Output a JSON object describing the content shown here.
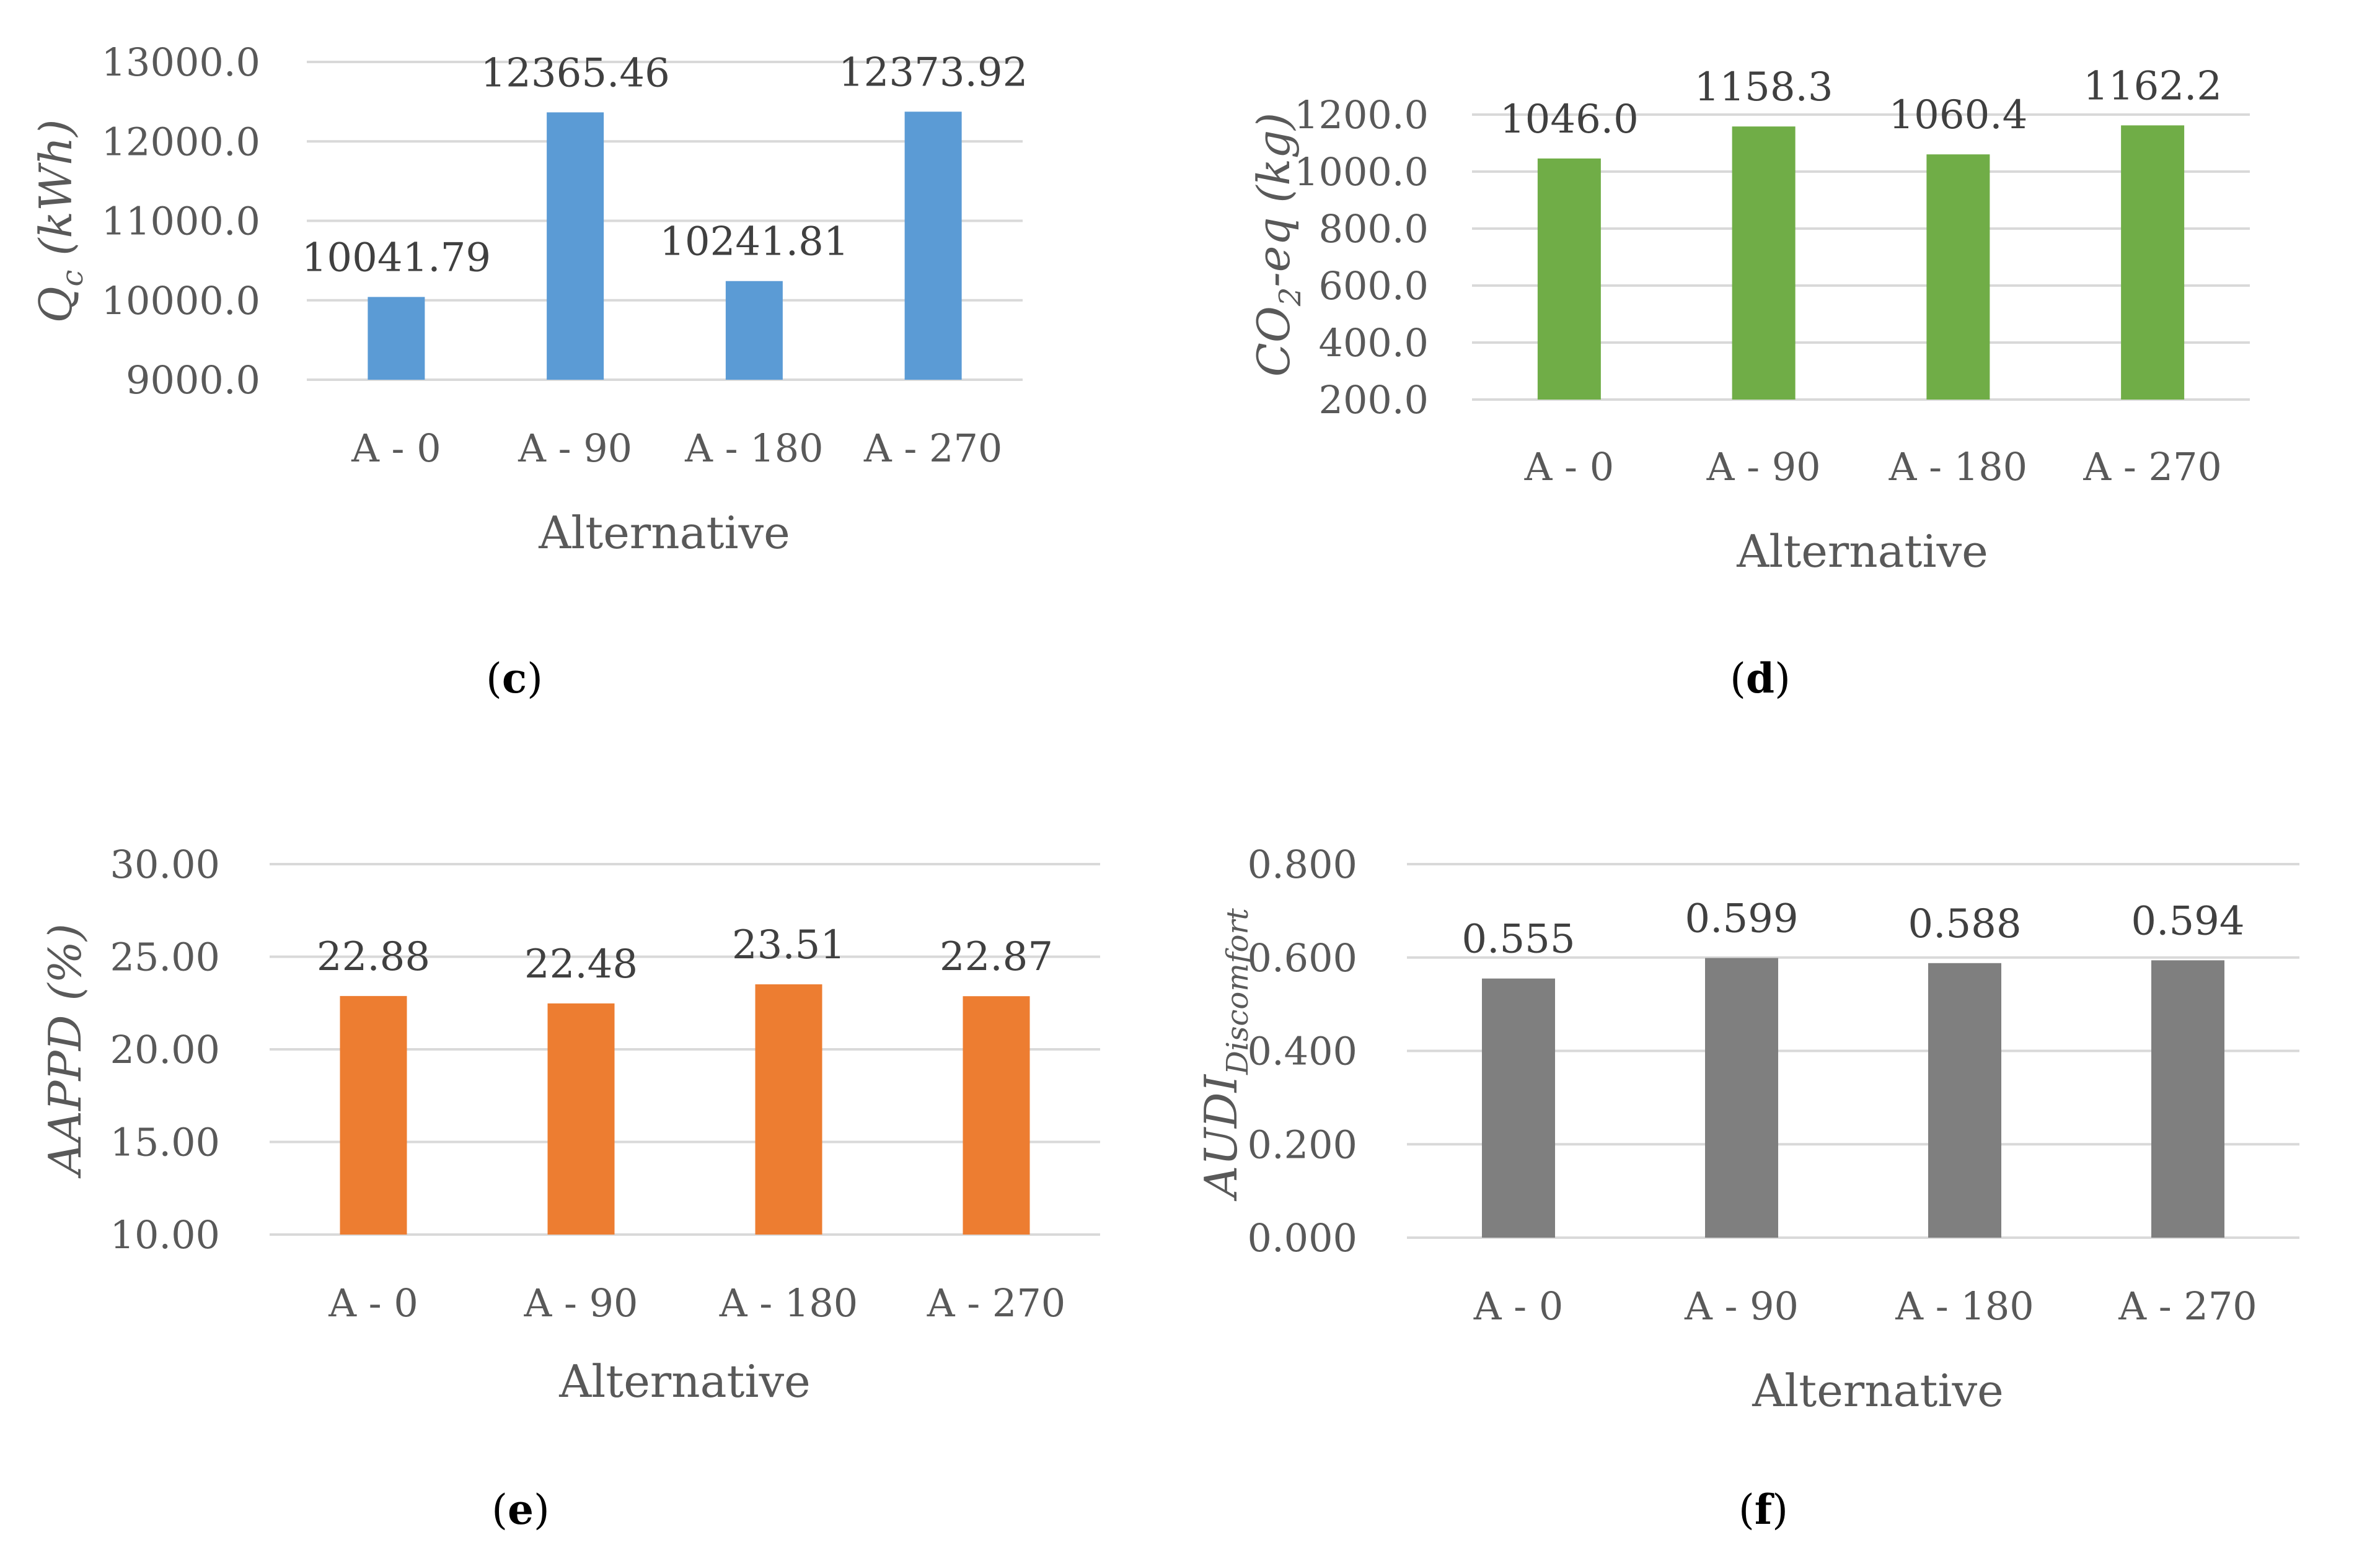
{
  "chart_data": [
    {
      "id": "c",
      "panel_label": "c",
      "type": "bar",
      "categories": [
        "A - 0",
        "A - 90",
        "A - 180",
        "A - 270"
      ],
      "values": [
        10041.79,
        12365.46,
        10241.81,
        12373.92
      ],
      "value_labels": [
        "10041.79",
        "12365.46",
        "10241.81",
        "12373.92"
      ],
      "ylabel": "Q",
      "ylabel_sub": "c",
      "ylabel_rest": " (kWh)",
      "xlabel": "Alternative",
      "ylim": [
        9000,
        13000
      ],
      "yticks": [
        "9000.0",
        "10000.0",
        "11000.0",
        "12000.0",
        "13000.0"
      ],
      "color": "#5b9bd5",
      "grid": true
    },
    {
      "id": "d",
      "panel_label": "d",
      "type": "bar",
      "categories": [
        "A - 0",
        "A - 90",
        "A - 180",
        "A - 270"
      ],
      "values": [
        1046.0,
        1158.3,
        1060.4,
        1162.2
      ],
      "value_labels": [
        "1046.0",
        "1158.3",
        "1060.4",
        "1162.2"
      ],
      "ylabel": "CO",
      "ylabel_sub": "2",
      "ylabel_rest": "-eq (kg)",
      "xlabel": "Alternative",
      "ylim": [
        200,
        1200
      ],
      "yticks": [
        "200.0",
        "400.0",
        "600.0",
        "800.0",
        "1000.0",
        "1200.0"
      ],
      "color": "#70ad47",
      "grid": true
    },
    {
      "id": "e",
      "panel_label": "e",
      "type": "bar",
      "categories": [
        "A - 0",
        "A - 90",
        "A - 180",
        "A - 270"
      ],
      "values": [
        22.88,
        22.48,
        23.51,
        22.87
      ],
      "value_labels": [
        "22.88",
        "22.48",
        "23.51",
        "22.87"
      ],
      "ylabel": "AAPPD",
      "ylabel_sub": "",
      "ylabel_rest": " (%)",
      "xlabel": "Alternative",
      "ylim": [
        10,
        30
      ],
      "yticks": [
        "10.00",
        "15.00",
        "20.00",
        "25.00",
        "30.00"
      ],
      "color": "#ed7d31",
      "grid": true
    },
    {
      "id": "f",
      "panel_label": "f",
      "type": "bar",
      "categories": [
        "A - 0",
        "A - 90",
        "A - 180",
        "A - 270"
      ],
      "values": [
        0.555,
        0.599,
        0.588,
        0.594
      ],
      "value_labels": [
        "0.555",
        "0.599",
        "0.588",
        "0.594"
      ],
      "ylabel": "AUDI",
      "ylabel_sub": "Discomfort",
      "ylabel_rest": "",
      "xlabel": "Alternative",
      "ylim": [
        0,
        0.8
      ],
      "yticks": [
        "0.000",
        "0.200",
        "0.400",
        "0.600",
        "0.800"
      ],
      "color": "#7f7f7f",
      "grid": true
    }
  ]
}
